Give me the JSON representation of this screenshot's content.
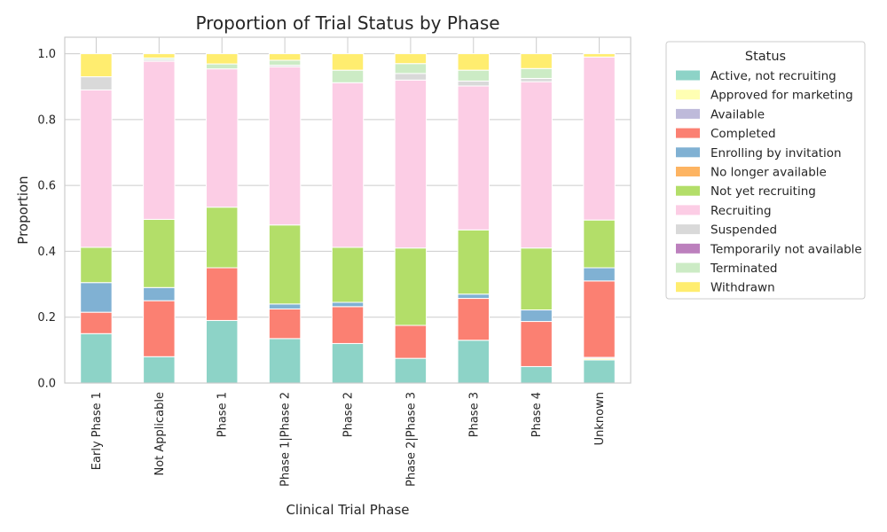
{
  "chart_data": {
    "type": "bar",
    "stacked": true,
    "title": "Proportion of Trial Status by Phase",
    "xlabel": "Clinical Trial Phase",
    "ylabel": "Proportion",
    "ylim": [
      0,
      1.05
    ],
    "yticks": [
      "0.0",
      "0.2",
      "0.4",
      "0.6",
      "0.8",
      "1.0"
    ],
    "grid": true,
    "legend_title": "Status",
    "legend_placement": "outside-right",
    "categories": [
      "Early Phase 1",
      "Not Applicable",
      "Phase 1",
      "Phase 1|Phase 2",
      "Phase 2",
      "Phase 2|Phase 3",
      "Phase 3",
      "Phase 4",
      "Unknown"
    ],
    "series": [
      {
        "name": "Active, not recruiting",
        "color": "#8dd3c7",
        "values": [
          0.15,
          0.08,
          0.19,
          0.135,
          0.12,
          0.075,
          0.13,
          0.05,
          0.07
        ]
      },
      {
        "name": "Approved for marketing",
        "color": "#ffffb3",
        "values": [
          0,
          0,
          0,
          0,
          0,
          0,
          0,
          0,
          0.005
        ]
      },
      {
        "name": "Available",
        "color": "#bebada",
        "values": [
          0,
          0,
          0,
          0,
          0,
          0,
          0,
          0,
          0.003
        ]
      },
      {
        "name": "Completed",
        "color": "#fb8072",
        "values": [
          0.065,
          0.17,
          0.16,
          0.09,
          0.112,
          0.1,
          0.127,
          0.137,
          0.232
        ]
      },
      {
        "name": "Enrolling by invitation",
        "color": "#80b1d3",
        "values": [
          0.09,
          0.04,
          0,
          0.015,
          0.013,
          0,
          0.013,
          0.035,
          0.04
        ]
      },
      {
        "name": "No longer available",
        "color": "#fdb462",
        "values": [
          0,
          0,
          0,
          0,
          0,
          0,
          0,
          0,
          0
        ]
      },
      {
        "name": "Not yet recruiting",
        "color": "#b3de69",
        "values": [
          0.107,
          0.207,
          0.184,
          0.24,
          0.167,
          0.235,
          0.195,
          0.188,
          0.145
        ]
      },
      {
        "name": "Recruiting",
        "color": "#fccde5",
        "values": [
          0.478,
          0.48,
          0.42,
          0.48,
          0.5,
          0.51,
          0.437,
          0.505,
          0.495
        ]
      },
      {
        "name": "Suspended",
        "color": "#d9d9d9",
        "values": [
          0.04,
          0.005,
          0,
          0.005,
          0,
          0.02,
          0.015,
          0.01,
          0
        ]
      },
      {
        "name": "Temporarily not available",
        "color": "#bc80bd",
        "values": [
          0,
          0,
          0,
          0,
          0,
          0,
          0,
          0,
          0
        ]
      },
      {
        "name": "Terminated",
        "color": "#ccebc5",
        "values": [
          0,
          0.005,
          0.015,
          0.015,
          0.038,
          0.03,
          0.033,
          0.03,
          0
        ]
      },
      {
        "name": "Withdrawn",
        "color": "#ffed6f",
        "values": [
          0.07,
          0.013,
          0.031,
          0.02,
          0.05,
          0.03,
          0.05,
          0.045,
          0.01
        ]
      }
    ]
  }
}
